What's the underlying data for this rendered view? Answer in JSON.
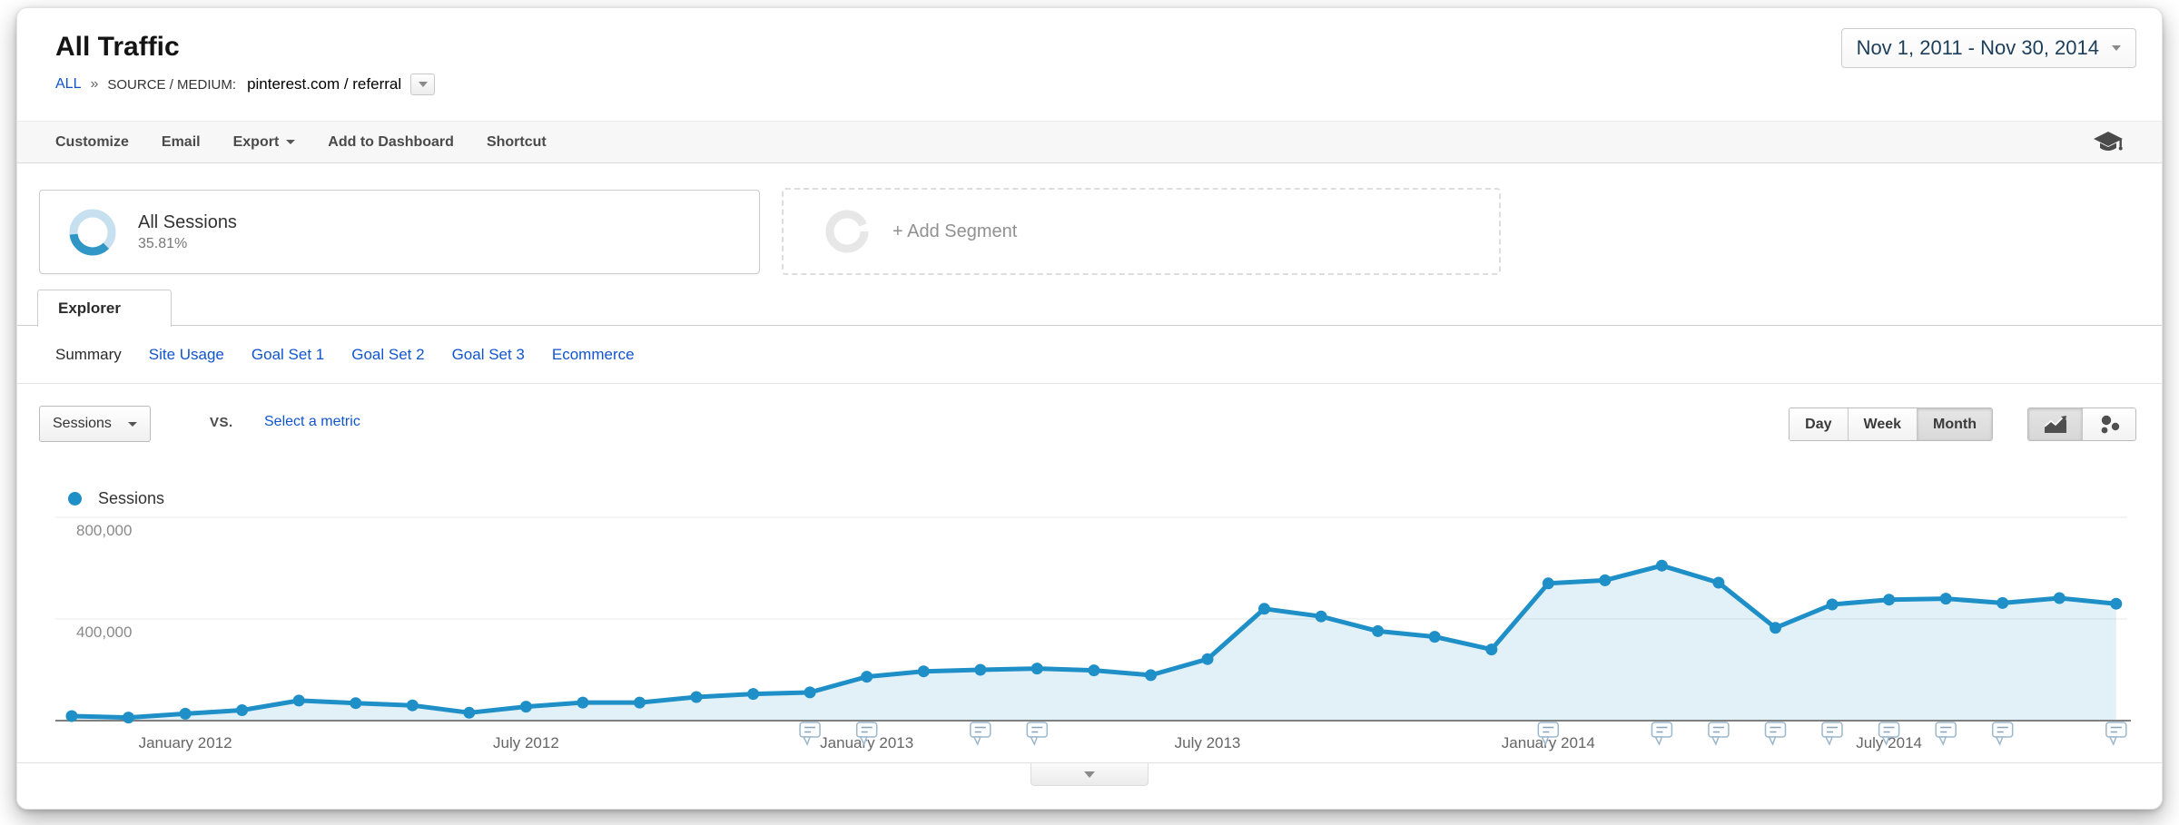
{
  "header": {
    "title": "All Traffic",
    "breadcrumb": {
      "root": "ALL",
      "separator": "»",
      "dimension": "SOURCE / MEDIUM:",
      "value": "pinterest.com / referral"
    },
    "date_range": "Nov 1, 2011 - Nov 30, 2014"
  },
  "toolbar": {
    "customize": "Customize",
    "email": "Email",
    "export": "Export",
    "add_to_dashboard": "Add to Dashboard",
    "shortcut": "Shortcut"
  },
  "segments": {
    "all_sessions_name": "All Sessions",
    "all_sessions_percent": "35.81%",
    "add_segment_label": "+ Add Segment"
  },
  "explorer_tab": "Explorer",
  "subnav": {
    "items": [
      {
        "label": "Summary",
        "active": true
      },
      {
        "label": "Site Usage",
        "active": false
      },
      {
        "label": "Goal Set 1",
        "active": false
      },
      {
        "label": "Goal Set 2",
        "active": false
      },
      {
        "label": "Goal Set 3",
        "active": false
      },
      {
        "label": "Ecommerce",
        "active": false
      }
    ]
  },
  "controls": {
    "metric_selected": "Sessions",
    "vs_label": "vs.",
    "compare_link": "Select a metric",
    "granularity": {
      "day": "Day",
      "week": "Week",
      "month": "Month",
      "active": "Month"
    }
  },
  "legend": {
    "label": "Sessions",
    "color": "#1f8fc7"
  },
  "colors": {
    "series_blue": "#1f8fc7",
    "area_fill": "rgba(31,143,199,0.13)",
    "link_blue": "#1155cc",
    "date_text": "#1c3e5a"
  },
  "chart_data": {
    "type": "line",
    "title": "Sessions by month",
    "legend": "Sessions",
    "area_fill": true,
    "grid": "horizontal",
    "ylim": [
      0,
      830000
    ],
    "x": [
      "Nov 2011",
      "Dec 2011",
      "Jan 2012",
      "Feb 2012",
      "Mar 2012",
      "Apr 2012",
      "May 2012",
      "Jun 2012",
      "Jul 2012",
      "Aug 2012",
      "Sep 2012",
      "Oct 2012",
      "Nov 2012",
      "Dec 2012",
      "Jan 2013",
      "Feb 2013",
      "Mar 2013",
      "Apr 2013",
      "May 2013",
      "Jun 2013",
      "Jul 2013",
      "Aug 2013",
      "Sep 2013",
      "Oct 2013",
      "Nov 2013",
      "Dec 2013",
      "Jan 2014",
      "Feb 2014",
      "Mar 2014",
      "Apr 2014",
      "May 2014",
      "Jun 2014",
      "Jul 2014",
      "Aug 2014",
      "Sep 2014",
      "Oct 2014",
      "Nov 2014"
    ],
    "series": [
      {
        "name": "Sessions",
        "color": "#1f8fc7",
        "values": [
          18000,
          12000,
          27000,
          41000,
          79000,
          69000,
          60000,
          31000,
          55000,
          71000,
          71000,
          93000,
          105000,
          111000,
          173000,
          194000,
          200000,
          205000,
          198000,
          179000,
          242000,
          440000,
          410000,
          352000,
          330000,
          280000,
          540000,
          552000,
          610000,
          543000,
          365000,
          457000,
          476000,
          480000,
          463000,
          482000,
          460000
        ]
      }
    ],
    "x_tick_labels": [
      {
        "index": 2,
        "label": "January 2012"
      },
      {
        "index": 8,
        "label": "July 2012"
      },
      {
        "index": 14,
        "label": "January 2013"
      },
      {
        "index": 20,
        "label": "July 2013"
      },
      {
        "index": 26,
        "label": "January 2014"
      },
      {
        "index": 32,
        "label": "July 2014"
      }
    ],
    "y_ticks": [
      {
        "value": 800000,
        "label": "800,000"
      },
      {
        "value": 400000,
        "label": "400,000"
      }
    ],
    "annotation_indices": [
      13,
      14,
      16,
      17,
      26,
      28,
      29,
      30,
      31,
      32,
      33,
      34,
      36
    ]
  }
}
